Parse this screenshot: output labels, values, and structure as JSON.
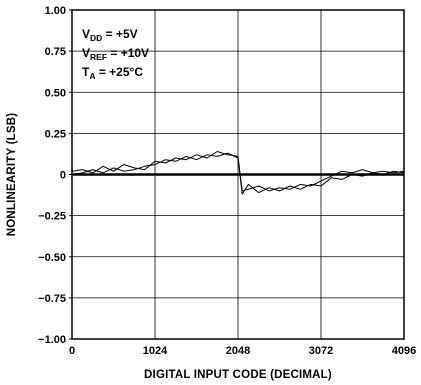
{
  "chart_data": {
    "type": "line",
    "xlabel": "DIGITAL INPUT CODE (DECIMAL)",
    "ylabel": "NONLINEARITY (LSB)",
    "xlim": [
      0,
      4096
    ],
    "ylim": [
      -1.0,
      1.0
    ],
    "x_ticks": [
      0,
      1024,
      2048,
      3072,
      4096
    ],
    "x_tick_labels": [
      "0",
      "1024",
      "2048",
      "3072",
      "4096"
    ],
    "y_ticks": [
      1.0,
      0.75,
      0.5,
      0.25,
      0,
      -0.25,
      -0.5,
      -0.75,
      -1.0
    ],
    "y_tick_labels": [
      "1.00",
      "0.75",
      "0.50",
      "0.25",
      "0",
      "−0.25",
      "−0.50",
      "−0.75",
      "−1.00"
    ],
    "grid": true,
    "annotations": [
      {
        "main": "V",
        "sub": "DD",
        "rest": " = +5V"
      },
      {
        "main": "V",
        "sub": "REF",
        "rest": " = +10V"
      },
      {
        "main": "T",
        "sub": "A",
        "rest": " = +25°C"
      }
    ],
    "series": [
      {
        "x": [
          0,
          128,
          256,
          384,
          512,
          640,
          768,
          896,
          1024,
          1152,
          1280,
          1408,
          1536,
          1664,
          1792,
          1920,
          2048,
          2100,
          2176,
          2304,
          2432,
          2560,
          2688,
          2816,
          2944,
          3072,
          3200,
          3328,
          3456,
          3584,
          3712,
          3840,
          3968,
          4096
        ],
        "y": [
          0.02,
          0.03,
          0.01,
          0.05,
          0.02,
          0.06,
          0.04,
          0.03,
          0.08,
          0.07,
          0.1,
          0.09,
          0.12,
          0.1,
          0.14,
          0.12,
          0.11,
          -0.1,
          -0.09,
          -0.07,
          -0.1,
          -0.08,
          -0.09,
          -0.06,
          -0.07,
          -0.04,
          -0.01,
          0.02,
          0.01,
          0.03,
          0.01,
          0.02,
          0.01,
          0.02
        ]
      },
      {
        "x": [
          0,
          128,
          256,
          384,
          512,
          640,
          768,
          896,
          1024,
          1152,
          1280,
          1408,
          1536,
          1664,
          1792,
          1920,
          2048,
          2100,
          2176,
          2304,
          2432,
          2560,
          2688,
          2816,
          2944,
          3072,
          3200,
          3328,
          3456,
          3584,
          3712,
          3840,
          3968,
          4096
        ],
        "y": [
          0.0,
          0.01,
          0.03,
          0.01,
          0.04,
          0.02,
          0.03,
          0.05,
          0.06,
          0.09,
          0.08,
          0.11,
          0.09,
          0.12,
          0.11,
          0.13,
          0.1,
          -0.12,
          -0.06,
          -0.11,
          -0.08,
          -0.1,
          -0.07,
          -0.09,
          -0.06,
          -0.07,
          -0.02,
          -0.03,
          0.0,
          -0.01,
          0.01,
          0.0,
          0.02,
          0.01
        ]
      }
    ]
  }
}
